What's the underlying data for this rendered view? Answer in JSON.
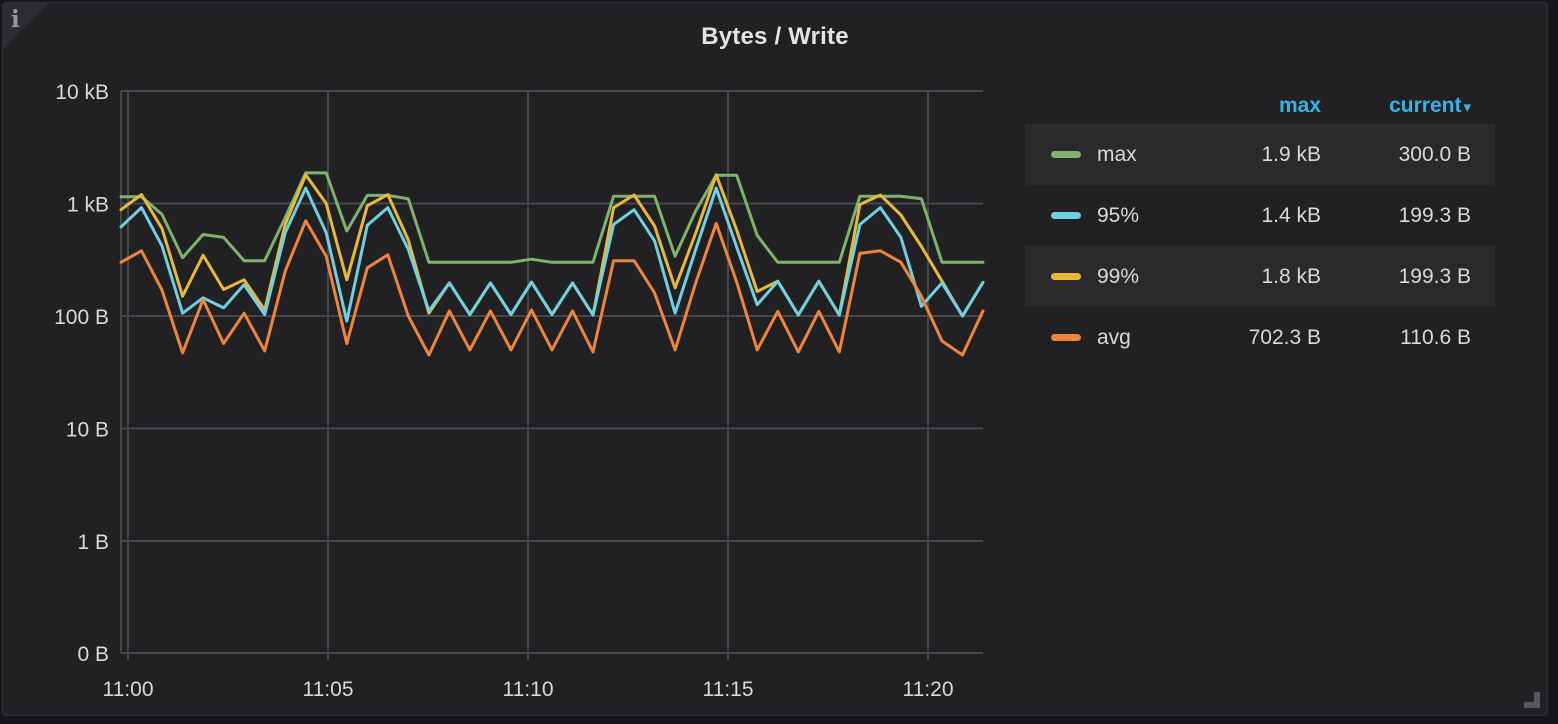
{
  "panel": {
    "title": "Bytes / Write"
  },
  "icons": {
    "info": "i",
    "sort_caret": "▾",
    "resize": "resize-grip"
  },
  "colors": {
    "panel_bg": "#212124",
    "grid": "#45474b",
    "text": "#d8d9da",
    "legend_header": "#33b5e5",
    "series_max": "#7eb26d",
    "series_p95": "#6ed0e0",
    "series_p99": "#eab839",
    "series_avg": "#ef843c"
  },
  "legend": {
    "columns": [
      "max",
      "current"
    ],
    "sorted_by": "current",
    "rows": [
      {
        "label": "max",
        "color": "#7eb26d",
        "max": "1.9 kB",
        "current": "300.0 B"
      },
      {
        "label": "95%",
        "color": "#6ed0e0",
        "max": "1.4 kB",
        "current": "199.3 B"
      },
      {
        "label": "99%",
        "color": "#eab839",
        "max": "1.8 kB",
        "current": "199.3 B"
      },
      {
        "label": "avg",
        "color": "#ef843c",
        "max": "702.3 B",
        "current": "110.6 B"
      }
    ]
  },
  "chart_data": {
    "type": "line",
    "title": "Bytes / Write",
    "unit": "bytes",
    "y_scale": "log10",
    "grid": true,
    "legend_position": "right-table",
    "x_start": "11:00:00",
    "x_interval_seconds": 30,
    "x_ticks": [
      "11:00",
      "11:05",
      "11:10",
      "11:15",
      "11:20"
    ],
    "y_ticks": [
      {
        "label": "10 kB",
        "value": 10000
      },
      {
        "label": "1 kB",
        "value": 1000
      },
      {
        "label": "100 B",
        "value": 100
      },
      {
        "label": "10 B",
        "value": 10
      },
      {
        "label": "1 B",
        "value": 1
      },
      {
        "label": "0 B",
        "value": 0
      }
    ],
    "draw_order": [
      "max",
      "99%",
      "95%",
      "avg"
    ],
    "series": [
      {
        "name": "max",
        "color": "#7eb26d",
        "values": [
          1150,
          1150,
          800,
          330,
          530,
          500,
          310,
          310,
          750,
          1870,
          1870,
          570,
          1180,
          1180,
          1100,
          300,
          300,
          300,
          300,
          300,
          320,
          300,
          300,
          300,
          1160,
          1160,
          1160,
          340,
          860,
          1780,
          1780,
          520,
          300,
          300,
          300,
          300,
          1160,
          1160,
          1160,
          1100,
          300,
          300,
          300
        ]
      },
      {
        "name": "99%",
        "color": "#eab839",
        "values": [
          880,
          1200,
          600,
          150,
          347,
          172,
          210,
          113,
          650,
          1800,
          1000,
          210,
          955,
          1200,
          474,
          106,
          197,
          103,
          197,
          103,
          200,
          103,
          197,
          102,
          920,
          1190,
          630,
          178,
          546,
          1800,
          580,
          165,
          204,
          102,
          204,
          102,
          980,
          1190,
          790,
          415,
          204,
          100,
          199
        ]
      },
      {
        "name": "95%",
        "color": "#6ed0e0",
        "values": [
          620,
          920,
          420,
          106,
          145,
          118,
          190,
          103,
          550,
          1370,
          550,
          90,
          640,
          920,
          390,
          111,
          197,
          103,
          197,
          103,
          200,
          103,
          197,
          102,
          650,
          880,
          465,
          106,
          390,
          1370,
          410,
          126,
          204,
          102,
          204,
          102,
          650,
          920,
          500,
          122,
          197,
          100,
          199
        ]
      },
      {
        "name": "avg",
        "color": "#ef843c",
        "values": [
          300,
          380,
          170,
          47,
          140,
          57,
          106,
          49,
          250,
          702,
          340,
          57,
          268,
          350,
          100,
          45,
          111,
          50,
          111,
          50,
          113,
          50,
          111,
          48,
          310,
          310,
          160,
          50,
          197,
          665,
          200,
          50,
          110,
          48,
          110,
          48,
          360,
          380,
          300,
          150,
          60,
          45,
          111
        ]
      }
    ]
  }
}
